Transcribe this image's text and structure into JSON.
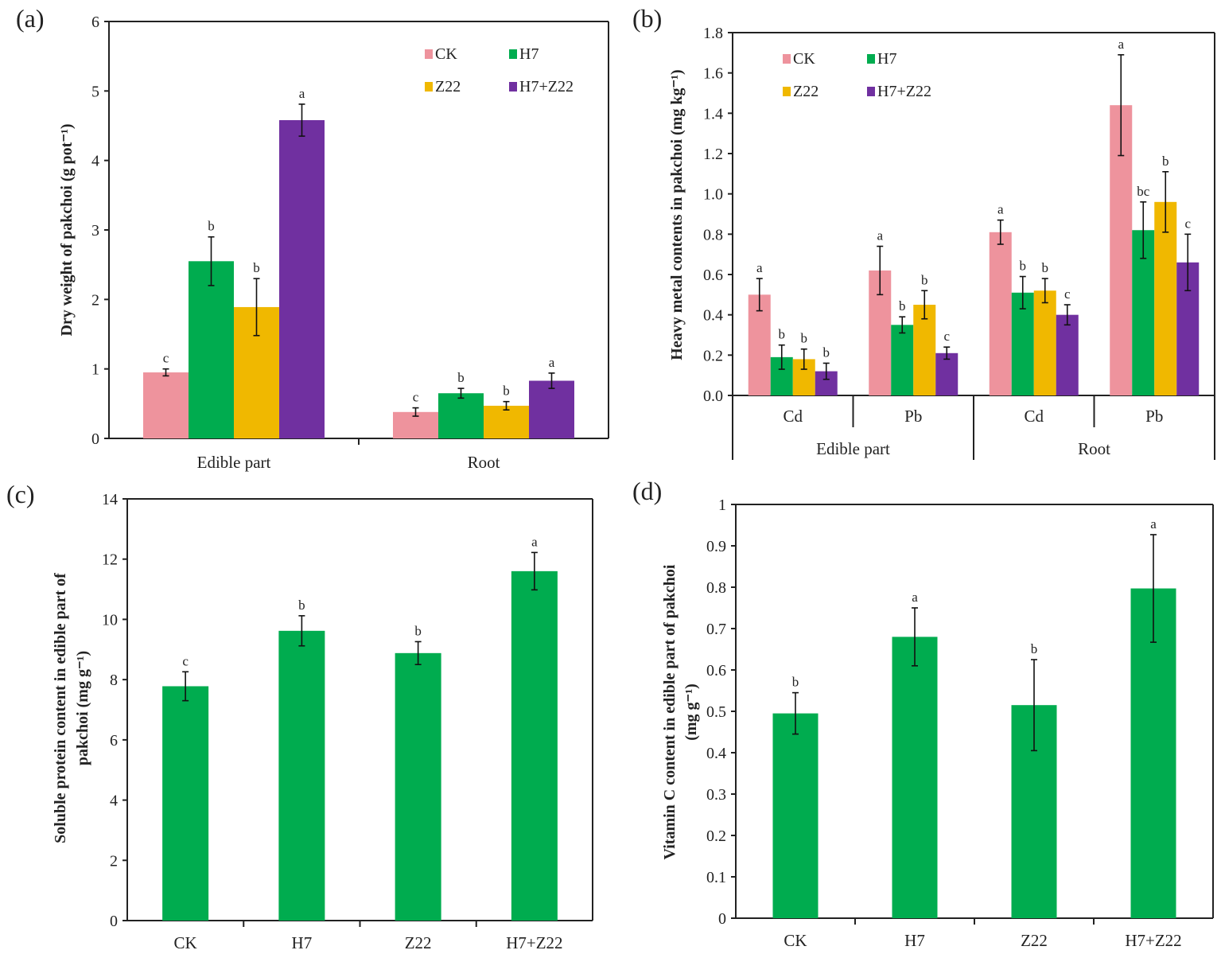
{
  "chart_data": [
    {
      "panel": "(a)",
      "type": "bar",
      "ylabel": "Dry weight of pakchoi (g pot⁻¹)",
      "ylim": [
        0,
        6
      ],
      "ystep": 1,
      "ydecimals": 0,
      "categories": [
        "Edible part",
        "Root"
      ],
      "legend": {
        "placement": "top-right"
      },
      "series": [
        {
          "name": "CK",
          "color": "#ee939d",
          "values": [
            0.95,
            0.38
          ],
          "errors": [
            0.05,
            0.06
          ],
          "letters": [
            "c",
            "c"
          ]
        },
        {
          "name": "H7",
          "color": "#00ac4f",
          "values": [
            2.55,
            0.65
          ],
          "errors": [
            0.35,
            0.07
          ],
          "letters": [
            "b",
            "b"
          ]
        },
        {
          "name": "Z22",
          "color": "#f0b800",
          "values": [
            1.89,
            0.47
          ],
          "errors": [
            0.41,
            0.06
          ],
          "letters": [
            "b",
            "b"
          ]
        },
        {
          "name": "H7+Z22",
          "color": "#7030a0",
          "values": [
            4.58,
            0.83
          ],
          "errors": [
            0.23,
            0.11
          ],
          "letters": [
            "a",
            "a"
          ]
        }
      ]
    },
    {
      "panel": "(b)",
      "type": "bar",
      "ylabel": "Heavy metal contents in pakchoi (mg kg⁻¹)",
      "ylim": [
        0,
        1.8
      ],
      "ystep": 0.2,
      "ydecimals": 1,
      "categories": [
        "Cd",
        "Pb",
        "Cd",
        "Pb"
      ],
      "category_groups": [
        "Edible part",
        "Root"
      ],
      "legend": {
        "placement": "top-left"
      },
      "series": [
        {
          "name": "CK",
          "color": "#ee939d",
          "values": [
            0.5,
            0.62,
            0.81,
            1.44
          ],
          "errors": [
            0.08,
            0.12,
            0.06,
            0.25
          ],
          "letters": [
            "a",
            "a",
            "a",
            "a"
          ]
        },
        {
          "name": "H7",
          "color": "#00ac4f",
          "values": [
            0.19,
            0.35,
            0.51,
            0.82
          ],
          "errors": [
            0.06,
            0.04,
            0.08,
            0.14
          ],
          "letters": [
            "b",
            "b",
            "b",
            "bc"
          ]
        },
        {
          "name": "Z22",
          "color": "#f0b800",
          "values": [
            0.18,
            0.45,
            0.52,
            0.96
          ],
          "errors": [
            0.05,
            0.07,
            0.06,
            0.15
          ],
          "letters": [
            "b",
            "b",
            "b",
            "b"
          ]
        },
        {
          "name": "H7+Z22",
          "color": "#7030a0",
          "values": [
            0.12,
            0.21,
            0.4,
            0.66
          ],
          "errors": [
            0.04,
            0.03,
            0.05,
            0.14
          ],
          "letters": [
            "b",
            "c",
            "c",
            "c"
          ]
        }
      ]
    },
    {
      "panel": "(c)",
      "type": "bar",
      "ylabel": [
        "Soluble protein content in edible part of",
        "pakchoi (mg g⁻¹)"
      ],
      "ylim": [
        0,
        14
      ],
      "ystep": 2,
      "ydecimals": 0,
      "categories": [
        "CK",
        "H7",
        "Z22",
        "H7+Z22"
      ],
      "series": [
        {
          "name": "Soluble protein",
          "color": "#00ac4f",
          "values": [
            7.78,
            9.62,
            8.88,
            11.6
          ],
          "errors": [
            0.48,
            0.5,
            0.38,
            0.62
          ],
          "letters": [
            "c",
            "b",
            "b",
            "a"
          ]
        }
      ]
    },
    {
      "panel": "(d)",
      "type": "bar",
      "ylabel": [
        "Vitamin C content in edible part of pakchoi",
        "(mg g⁻¹)"
      ],
      "ylim": [
        0,
        1
      ],
      "ystep": 0.1,
      "ydecimals": 1,
      "ytick_labels_trim": true,
      "categories": [
        "CK",
        "H7",
        "Z22",
        "H7+Z22"
      ],
      "series": [
        {
          "name": "Vitamin C",
          "color": "#00ac4f",
          "values": [
            0.495,
            0.68,
            0.515,
            0.797
          ],
          "errors": [
            0.05,
            0.07,
            0.11,
            0.13
          ],
          "letters": [
            "b",
            "a",
            "b",
            "a"
          ]
        }
      ]
    }
  ]
}
